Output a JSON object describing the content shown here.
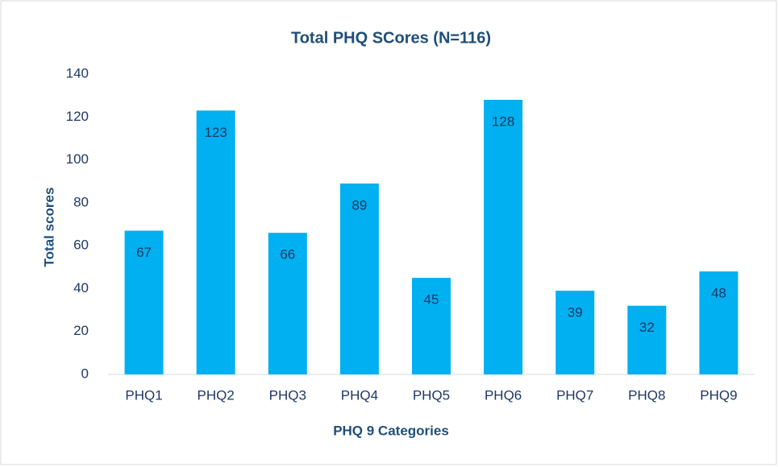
{
  "chart_data": {
    "type": "bar",
    "title": "Total PHQ SCores (N=116)",
    "x_label": "PHQ 9 Categories",
    "y_label": "Total scores",
    "categories": [
      "PHQ1",
      "PHQ2",
      "PHQ3",
      "PHQ4",
      "PHQ5",
      "PHQ6",
      "PHQ7",
      "PHQ8",
      "PHQ9"
    ],
    "values": [
      67,
      123,
      66,
      89,
      45,
      128,
      39,
      32,
      48
    ],
    "color": "#00b0f0",
    "ylim": [
      0,
      140
    ],
    "yticks": [
      0,
      20,
      40,
      60,
      80,
      100,
      120,
      140
    ],
    "grid": false,
    "data_labels": true
  }
}
